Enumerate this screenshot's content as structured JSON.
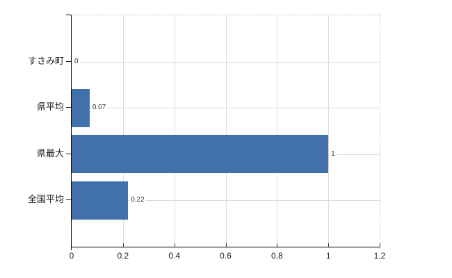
{
  "chart_data": {
    "type": "bar",
    "orientation": "horizontal",
    "title": "",
    "xlabel": "",
    "ylabel": "",
    "categories": [
      "すさみ町",
      "県平均",
      "県最大",
      "全国平均"
    ],
    "values": [
      0,
      0.07,
      1,
      0.22
    ],
    "value_labels": [
      "0",
      "0.07",
      "1",
      "0.22"
    ],
    "x_tick_values": [
      0,
      0.2,
      0.4,
      0.6,
      0.8,
      1,
      1.2
    ],
    "x_tick_labels": [
      "0",
      "0.2",
      "0.4",
      "0.6",
      "0.8",
      "1",
      "1.2"
    ],
    "xlim": [
      0,
      1.2
    ],
    "grid": true,
    "legend": false,
    "bar_color": "#4271a9"
  },
  "colors": {
    "bar": "#4271a9",
    "axis": "#000000",
    "gridline": "#d9d9d9",
    "dashed_border": "#cccccc",
    "background": "#ffffff",
    "label_text": "#1a1a1a",
    "value_text": "#333333"
  }
}
